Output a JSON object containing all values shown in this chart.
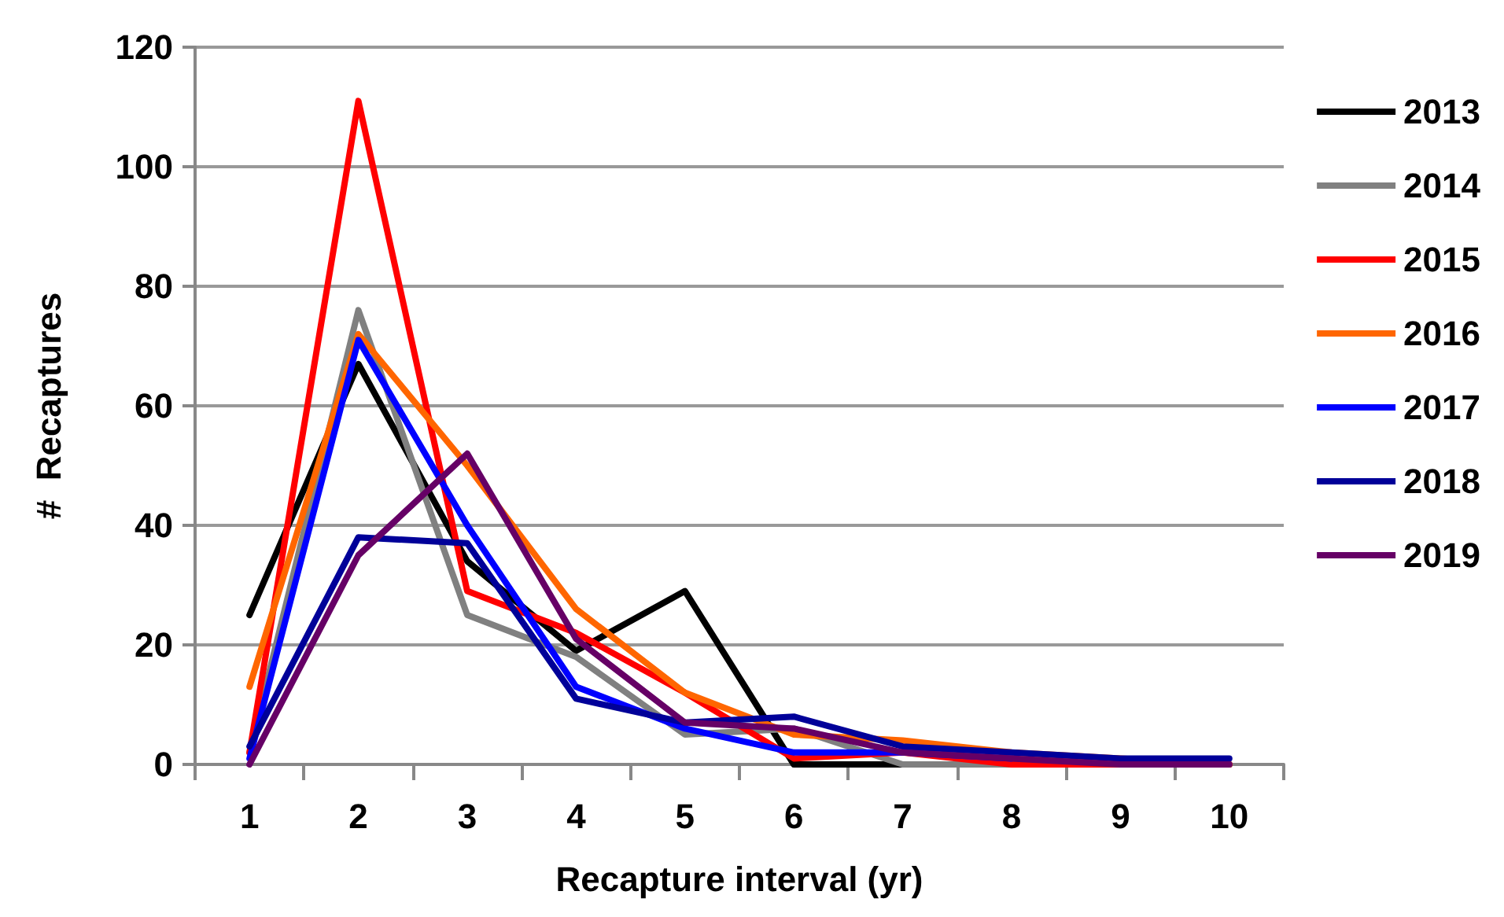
{
  "chart_data": {
    "type": "line",
    "xlabel": "Recapture interval (yr)",
    "ylabel": "#  Recaptures",
    "categories": [
      "1",
      "2",
      "3",
      "4",
      "5",
      "6",
      "7",
      "8",
      "9",
      "10"
    ],
    "series": [
      {
        "name": "2013",
        "color": "#000000",
        "values": [
          25,
          67,
          34,
          19,
          29,
          0,
          0,
          0,
          0,
          0
        ]
      },
      {
        "name": "2014",
        "color": "#808080",
        "values": [
          2,
          76,
          25,
          18,
          5,
          6,
          0,
          0,
          0,
          0
        ]
      },
      {
        "name": "2015",
        "color": "#ff0000",
        "values": [
          2,
          111,
          29,
          22,
          12,
          1,
          2,
          0,
          0,
          0
        ]
      },
      {
        "name": "2016",
        "color": "#ff6600",
        "values": [
          13,
          72,
          50,
          26,
          12,
          5,
          4,
          2,
          1,
          0
        ]
      },
      {
        "name": "2017",
        "color": "#0000ff",
        "values": [
          1,
          71,
          40,
          13,
          6,
          2,
          2,
          1,
          null,
          null
        ]
      },
      {
        "name": "2018",
        "color": "#000099",
        "values": [
          3,
          38,
          37,
          11,
          7,
          8,
          3,
          2,
          1,
          1
        ]
      },
      {
        "name": "2019",
        "color": "#660066",
        "values": [
          0,
          35,
          52,
          21,
          7,
          6,
          2,
          1,
          0,
          0
        ]
      }
    ],
    "ylim": [
      0,
      120
    ],
    "yticks": [
      0,
      20,
      40,
      60,
      80,
      100,
      120
    ],
    "grid": "y",
    "legend": "right",
    "marker": "none",
    "line_style": "solid"
  }
}
